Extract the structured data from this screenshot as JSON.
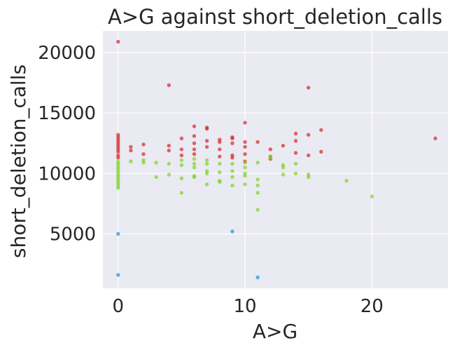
{
  "chart_data": {
    "type": "scatter",
    "title": "A>G against short_deletion_calls",
    "xlabel": "A>G",
    "ylabel": "short_deletion_calls",
    "xlim": [
      -1.2,
      26
    ],
    "ylim": [
      500,
      21800
    ],
    "xticks": [
      0,
      10,
      20
    ],
    "yticks": [
      5000,
      10000,
      15000,
      20000
    ],
    "grid": true,
    "legend": "none",
    "background": "#eaeaf2",
    "series": [
      {
        "color": "#d62728",
        "points": [
          [
            0,
            20900
          ],
          [
            0,
            13200
          ],
          [
            0,
            13000
          ],
          [
            0,
            12800
          ],
          [
            0,
            12600
          ],
          [
            0,
            12400
          ],
          [
            0,
            12200
          ],
          [
            0,
            12000
          ],
          [
            0,
            11800
          ],
          [
            0,
            11500
          ],
          [
            0,
            11300
          ],
          [
            1,
            12200
          ],
          [
            1,
            11900
          ],
          [
            2,
            12400
          ],
          [
            2,
            11600
          ],
          [
            4,
            17300
          ],
          [
            4,
            12300
          ],
          [
            4,
            11900
          ],
          [
            5,
            12900
          ],
          [
            5,
            12000
          ],
          [
            5,
            11500
          ],
          [
            6,
            13900
          ],
          [
            6,
            13100
          ],
          [
            6,
            12500
          ],
          [
            6,
            12000
          ],
          [
            6,
            11600
          ],
          [
            7,
            13800
          ],
          [
            7,
            13700
          ],
          [
            7,
            12700
          ],
          [
            7,
            12200
          ],
          [
            8,
            12800
          ],
          [
            8,
            12600
          ],
          [
            8,
            12000
          ],
          [
            8,
            11400
          ],
          [
            9,
            13000
          ],
          [
            9,
            12900
          ],
          [
            9,
            12500
          ],
          [
            9,
            11500
          ],
          [
            9,
            11300
          ],
          [
            10,
            14200
          ],
          [
            10,
            12600
          ],
          [
            10,
            12200
          ],
          [
            10,
            11600
          ],
          [
            10,
            11000
          ],
          [
            11,
            12600
          ],
          [
            12,
            12000
          ],
          [
            12,
            11400
          ],
          [
            12,
            11200
          ],
          [
            13,
            12300
          ],
          [
            14,
            13300
          ],
          [
            14,
            12700
          ],
          [
            14,
            11700
          ],
          [
            15,
            17100
          ],
          [
            15,
            13200
          ],
          [
            15,
            11500
          ],
          [
            16,
            13600
          ],
          [
            16,
            11800
          ],
          [
            25,
            12900
          ]
        ]
      },
      {
        "color": "#7ed321",
        "points": [
          [
            0,
            11000
          ],
          [
            0,
            10800
          ],
          [
            0,
            10600
          ],
          [
            0,
            10400
          ],
          [
            0,
            10200
          ],
          [
            0,
            10000
          ],
          [
            0,
            9800
          ],
          [
            0,
            9600
          ],
          [
            0,
            9400
          ],
          [
            0,
            9200
          ],
          [
            0,
            9000
          ],
          [
            0,
            8800
          ],
          [
            1,
            11000
          ],
          [
            2,
            11100
          ],
          [
            2,
            10900
          ],
          [
            3,
            10900
          ],
          [
            3,
            9700
          ],
          [
            4,
            10800
          ],
          [
            4,
            9900
          ],
          [
            5,
            11100
          ],
          [
            5,
            10700
          ],
          [
            5,
            9600
          ],
          [
            5,
            8400
          ],
          [
            6,
            11200
          ],
          [
            6,
            10800
          ],
          [
            6,
            10500
          ],
          [
            6,
            9800
          ],
          [
            6,
            9700
          ],
          [
            7,
            11100
          ],
          [
            7,
            10800
          ],
          [
            7,
            10200
          ],
          [
            7,
            10000
          ],
          [
            7,
            9100
          ],
          [
            8,
            10800
          ],
          [
            8,
            10100
          ],
          [
            8,
            9400
          ],
          [
            8,
            9300
          ],
          [
            9,
            10800
          ],
          [
            9,
            10200
          ],
          [
            9,
            9700
          ],
          [
            9,
            9000
          ],
          [
            10,
            10900
          ],
          [
            10,
            10500
          ],
          [
            10,
            10000
          ],
          [
            10,
            9800
          ],
          [
            10,
            9100
          ],
          [
            11,
            10900
          ],
          [
            11,
            9500
          ],
          [
            11,
            9000
          ],
          [
            11,
            8400
          ],
          [
            11,
            7000
          ],
          [
            12,
            11400
          ],
          [
            12,
            11300
          ],
          [
            13,
            10700
          ],
          [
            13,
            10500
          ],
          [
            13,
            9900
          ],
          [
            14,
            10800
          ],
          [
            14,
            10000
          ],
          [
            15,
            9900
          ],
          [
            15,
            9700
          ],
          [
            18,
            9400
          ],
          [
            20,
            8100
          ]
        ]
      },
      {
        "color": "#1f8fd6",
        "points": [
          [
            0,
            5000
          ],
          [
            0,
            1600
          ],
          [
            9,
            5200
          ],
          [
            11,
            1400
          ]
        ]
      }
    ]
  }
}
